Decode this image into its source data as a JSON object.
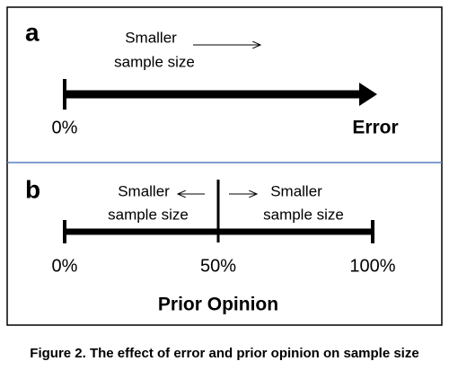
{
  "caption": "Figure 2. The effect of error and prior opinion on sample size",
  "panels": [
    {
      "letter": "a",
      "note": [
        "Smaller",
        "sample size"
      ],
      "axis_start": "0%",
      "axis_label": "Error"
    },
    {
      "letter": "b",
      "left_note": [
        "Smaller",
        "sample size"
      ],
      "right_note": [
        "Smaller",
        "sample size"
      ],
      "ticks": [
        "0%",
        "50%",
        "100%"
      ],
      "axis_label": "Prior Opinion"
    }
  ]
}
